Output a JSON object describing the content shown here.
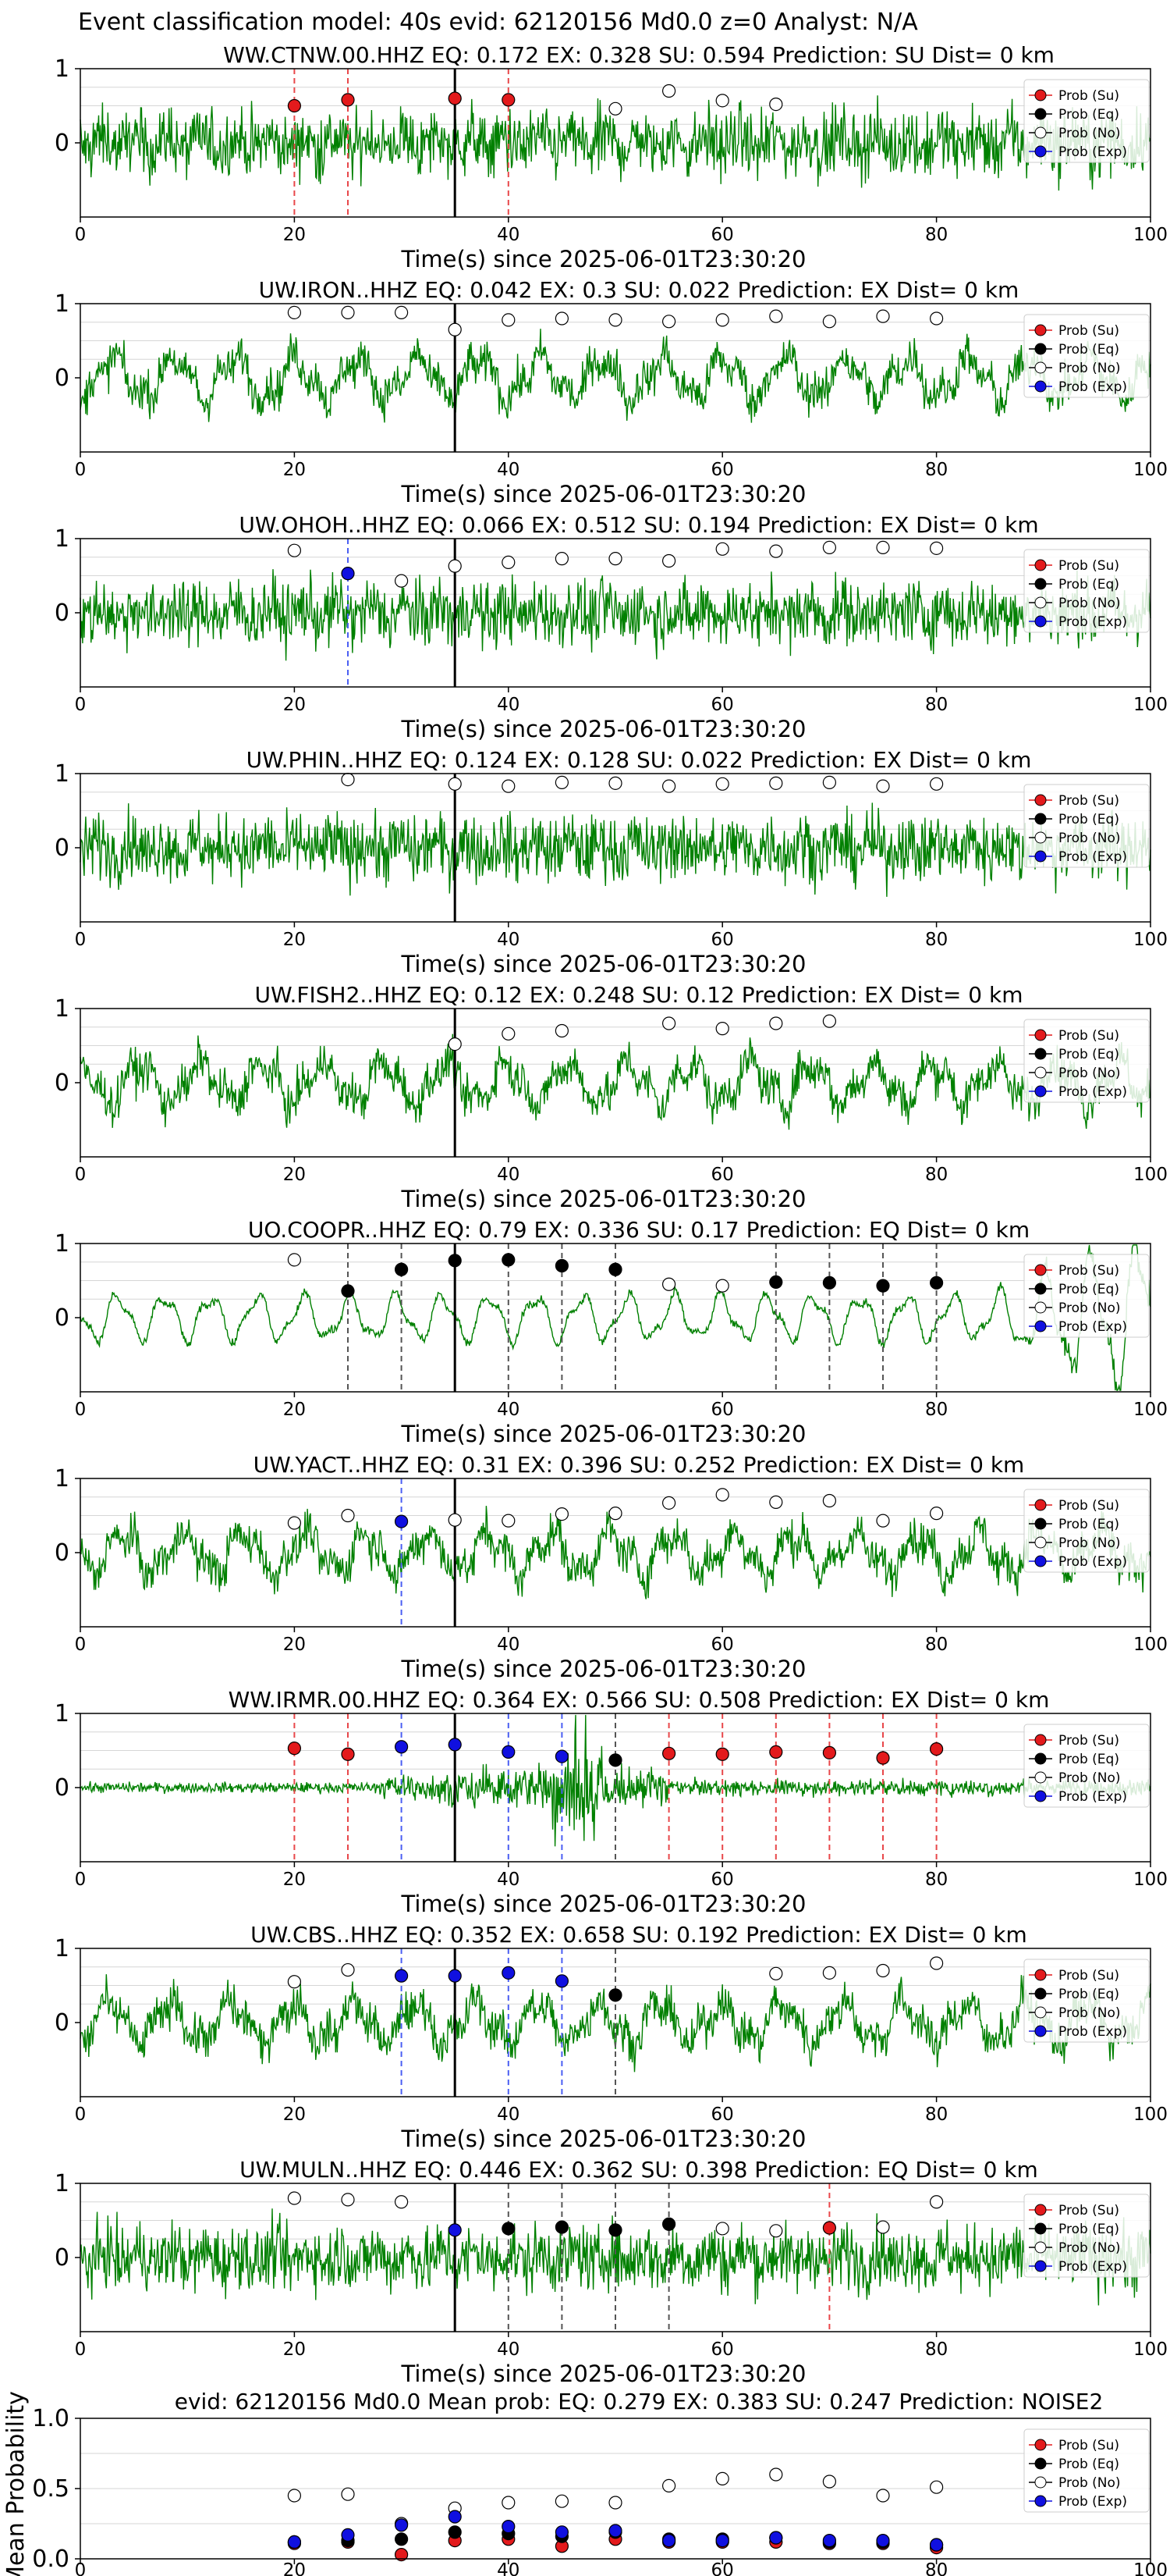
{
  "suptitle": "Event classification model: 40s evid: 62120156 Md0.0 z=0 Analyst: N/A",
  "colors": {
    "waveform": "#008000",
    "su": "#e31a1c",
    "eq": "#000000",
    "no": "#ffffff",
    "exp": "#1010e0",
    "su_line": "#e8474a",
    "eq_line": "#555555",
    "exp_line": "#4b5ff2",
    "origin_line": "#000000",
    "grid": "#d6d6d6"
  },
  "legend": [
    "Prob (Su)",
    "Prob (Eq)",
    "Prob (No)",
    "Prob (Exp)"
  ],
  "common": {
    "xlabel": "Time(s) since 2025-06-01T23:30:20",
    "xlim": [
      0,
      100
    ],
    "xticks": [
      0,
      20,
      40,
      60,
      80,
      100
    ],
    "ylim": [
      -1,
      1
    ],
    "yticks": [
      0,
      1
    ],
    "origin_time": 35
  },
  "chart_data": [
    {
      "type": "line+scatter",
      "station": "WW.CTNW.00.HHZ",
      "title": "WW.CTNW.00.HHZ   EQ: 0.172  EX: 0.328  SU: 0.594   Prediction: SU    Dist= 0 km",
      "waveform_style": "broadband",
      "points": [
        {
          "x": 20,
          "y": 0.5,
          "c": "su"
        },
        {
          "x": 25,
          "y": 0.58,
          "c": "su"
        },
        {
          "x": 35,
          "y": 0.6,
          "c": "su"
        },
        {
          "x": 40,
          "y": 0.58,
          "c": "su"
        },
        {
          "x": 50,
          "y": 0.46,
          "c": "no"
        },
        {
          "x": 55,
          "y": 0.7,
          "c": "no"
        },
        {
          "x": 60,
          "y": 0.57,
          "c": "no"
        },
        {
          "x": 65,
          "y": 0.52,
          "c": "no"
        }
      ]
    },
    {
      "type": "line+scatter",
      "station": "UW.IRON..HHZ",
      "title": "UW.IRON..HHZ   EQ: 0.042  EX: 0.3  SU: 0.022   Prediction: EX    Dist= 0 km",
      "waveform_style": "mixed",
      "points": [
        {
          "x": 20,
          "y": 0.88,
          "c": "no"
        },
        {
          "x": 25,
          "y": 0.88,
          "c": "no"
        },
        {
          "x": 30,
          "y": 0.88,
          "c": "no"
        },
        {
          "x": 35,
          "y": 0.65,
          "c": "no"
        },
        {
          "x": 40,
          "y": 0.78,
          "c": "no"
        },
        {
          "x": 45,
          "y": 0.8,
          "c": "no"
        },
        {
          "x": 50,
          "y": 0.78,
          "c": "no"
        },
        {
          "x": 55,
          "y": 0.76,
          "c": "no"
        },
        {
          "x": 60,
          "y": 0.78,
          "c": "no"
        },
        {
          "x": 65,
          "y": 0.83,
          "c": "no"
        },
        {
          "x": 70,
          "y": 0.76,
          "c": "no"
        },
        {
          "x": 75,
          "y": 0.83,
          "c": "no"
        },
        {
          "x": 80,
          "y": 0.8,
          "c": "no"
        }
      ]
    },
    {
      "type": "line+scatter",
      "station": "UW.OHOH..HHZ",
      "title": "UW.OHOH..HHZ   EQ: 0.066  EX: 0.512  SU: 0.194   Prediction: EX    Dist= 0 km",
      "waveform_style": "broadband",
      "points": [
        {
          "x": 20,
          "y": 0.84,
          "c": "no"
        },
        {
          "x": 25,
          "y": 0.53,
          "c": "exp"
        },
        {
          "x": 30,
          "y": 0.43,
          "c": "no"
        },
        {
          "x": 35,
          "y": 0.63,
          "c": "no"
        },
        {
          "x": 40,
          "y": 0.68,
          "c": "no"
        },
        {
          "x": 45,
          "y": 0.73,
          "c": "no"
        },
        {
          "x": 50,
          "y": 0.73,
          "c": "no"
        },
        {
          "x": 55,
          "y": 0.7,
          "c": "no"
        },
        {
          "x": 60,
          "y": 0.86,
          "c": "no"
        },
        {
          "x": 65,
          "y": 0.83,
          "c": "no"
        },
        {
          "x": 70,
          "y": 0.88,
          "c": "no"
        },
        {
          "x": 75,
          "y": 0.88,
          "c": "no"
        },
        {
          "x": 80,
          "y": 0.87,
          "c": "no"
        }
      ]
    },
    {
      "type": "line+scatter",
      "station": "UW.PHIN..HHZ",
      "title": "UW.PHIN..HHZ   EQ: 0.124  EX: 0.128  SU: 0.022   Prediction: EX    Dist= 0 km",
      "waveform_style": "broadband",
      "points": [
        {
          "x": 25,
          "y": 0.92,
          "c": "no"
        },
        {
          "x": 35,
          "y": 0.86,
          "c": "no"
        },
        {
          "x": 40,
          "y": 0.83,
          "c": "no"
        },
        {
          "x": 45,
          "y": 0.88,
          "c": "no"
        },
        {
          "x": 50,
          "y": 0.87,
          "c": "no"
        },
        {
          "x": 55,
          "y": 0.83,
          "c": "no"
        },
        {
          "x": 60,
          "y": 0.86,
          "c": "no"
        },
        {
          "x": 65,
          "y": 0.87,
          "c": "no"
        },
        {
          "x": 70,
          "y": 0.88,
          "c": "no"
        },
        {
          "x": 75,
          "y": 0.83,
          "c": "no"
        },
        {
          "x": 80,
          "y": 0.86,
          "c": "no"
        }
      ]
    },
    {
      "type": "line+scatter",
      "station": "UW.FISH2..HHZ",
      "title": "UW.FISH2..HHZ   EQ: 0.12  EX: 0.248  SU: 0.12   Prediction: EX    Dist= 0 km",
      "waveform_style": "mixed",
      "points": [
        {
          "x": 35,
          "y": 0.52,
          "c": "no"
        },
        {
          "x": 40,
          "y": 0.66,
          "c": "no"
        },
        {
          "x": 45,
          "y": 0.7,
          "c": "no"
        },
        {
          "x": 55,
          "y": 0.8,
          "c": "no"
        },
        {
          "x": 60,
          "y": 0.73,
          "c": "no"
        },
        {
          "x": 65,
          "y": 0.8,
          "c": "no"
        },
        {
          "x": 70,
          "y": 0.83,
          "c": "no"
        }
      ]
    },
    {
      "type": "line+scatter",
      "station": "UO.COOPR..HHZ",
      "title": "UO.COOPR..HHZ   EQ: 0.79  EX: 0.336  SU: 0.17   Prediction: EQ    Dist= 0 km",
      "waveform_style": "smooth",
      "points": [
        {
          "x": 20,
          "y": 0.78,
          "c": "no"
        },
        {
          "x": 25,
          "y": 0.36,
          "c": "eq"
        },
        {
          "x": 30,
          "y": 0.65,
          "c": "eq"
        },
        {
          "x": 35,
          "y": 0.77,
          "c": "eq"
        },
        {
          "x": 40,
          "y": 0.78,
          "c": "eq"
        },
        {
          "x": 45,
          "y": 0.7,
          "c": "eq"
        },
        {
          "x": 50,
          "y": 0.65,
          "c": "eq"
        },
        {
          "x": 55,
          "y": 0.45,
          "c": "no"
        },
        {
          "x": 60,
          "y": 0.43,
          "c": "no"
        },
        {
          "x": 65,
          "y": 0.48,
          "c": "eq"
        },
        {
          "x": 70,
          "y": 0.47,
          "c": "eq"
        },
        {
          "x": 75,
          "y": 0.43,
          "c": "eq"
        },
        {
          "x": 80,
          "y": 0.47,
          "c": "eq"
        }
      ]
    },
    {
      "type": "line+scatter",
      "station": "UW.YACT..HHZ",
      "title": "UW.YACT..HHZ   EQ: 0.31  EX: 0.396  SU: 0.252   Prediction: EX    Dist= 0 km",
      "waveform_style": "mixed",
      "points": [
        {
          "x": 20,
          "y": 0.4,
          "c": "no"
        },
        {
          "x": 25,
          "y": 0.5,
          "c": "no"
        },
        {
          "x": 30,
          "y": 0.42,
          "c": "exp"
        },
        {
          "x": 35,
          "y": 0.44,
          "c": "no"
        },
        {
          "x": 40,
          "y": 0.43,
          "c": "no"
        },
        {
          "x": 45,
          "y": 0.52,
          "c": "no"
        },
        {
          "x": 50,
          "y": 0.53,
          "c": "no"
        },
        {
          "x": 55,
          "y": 0.67,
          "c": "no"
        },
        {
          "x": 60,
          "y": 0.78,
          "c": "no"
        },
        {
          "x": 65,
          "y": 0.68,
          "c": "no"
        },
        {
          "x": 70,
          "y": 0.7,
          "c": "no"
        },
        {
          "x": 75,
          "y": 0.43,
          "c": "no"
        },
        {
          "x": 80,
          "y": 0.53,
          "c": "no"
        }
      ]
    },
    {
      "type": "line+scatter",
      "station": "WW.IRMR.00.HHZ",
      "title": "WW.IRMR.00.HHZ   EQ: 0.364  EX: 0.566  SU: 0.508   Prediction: EX    Dist= 0 km",
      "waveform_style": "quiet",
      "points": [
        {
          "x": 20,
          "y": 0.53,
          "c": "su"
        },
        {
          "x": 25,
          "y": 0.45,
          "c": "su"
        },
        {
          "x": 30,
          "y": 0.55,
          "c": "exp"
        },
        {
          "x": 35,
          "y": 0.58,
          "c": "exp"
        },
        {
          "x": 40,
          "y": 0.48,
          "c": "exp"
        },
        {
          "x": 45,
          "y": 0.42,
          "c": "exp"
        },
        {
          "x": 50,
          "y": 0.37,
          "c": "eq"
        },
        {
          "x": 55,
          "y": 0.46,
          "c": "su"
        },
        {
          "x": 60,
          "y": 0.45,
          "c": "su"
        },
        {
          "x": 65,
          "y": 0.48,
          "c": "su"
        },
        {
          "x": 70,
          "y": 0.47,
          "c": "su"
        },
        {
          "x": 75,
          "y": 0.4,
          "c": "su"
        },
        {
          "x": 80,
          "y": 0.52,
          "c": "su"
        }
      ]
    },
    {
      "type": "line+scatter",
      "station": "UW.CBS..HHZ",
      "title": "UW.CBS..HHZ   EQ: 0.352  EX: 0.658  SU: 0.192   Prediction: EX    Dist= 0 km",
      "waveform_style": "mixed",
      "points": [
        {
          "x": 20,
          "y": 0.55,
          "c": "no"
        },
        {
          "x": 25,
          "y": 0.71,
          "c": "no"
        },
        {
          "x": 30,
          "y": 0.63,
          "c": "exp"
        },
        {
          "x": 35,
          "y": 0.63,
          "c": "exp"
        },
        {
          "x": 40,
          "y": 0.67,
          "c": "exp"
        },
        {
          "x": 45,
          "y": 0.56,
          "c": "exp"
        },
        {
          "x": 50,
          "y": 0.37,
          "c": "eq"
        },
        {
          "x": 65,
          "y": 0.66,
          "c": "no"
        },
        {
          "x": 70,
          "y": 0.67,
          "c": "no"
        },
        {
          "x": 75,
          "y": 0.7,
          "c": "no"
        },
        {
          "x": 80,
          "y": 0.8,
          "c": "no"
        }
      ]
    },
    {
      "type": "line+scatter",
      "station": "UW.MULN..HHZ",
      "title": "UW.MULN..HHZ   EQ: 0.446  EX: 0.362  SU: 0.398   Prediction: EQ    Dist= 0 km",
      "waveform_style": "broadband",
      "points": [
        {
          "x": 20,
          "y": 0.8,
          "c": "no"
        },
        {
          "x": 25,
          "y": 0.78,
          "c": "no"
        },
        {
          "x": 30,
          "y": 0.75,
          "c": "no"
        },
        {
          "x": 35,
          "y": 0.37,
          "c": "exp"
        },
        {
          "x": 40,
          "y": 0.39,
          "c": "eq"
        },
        {
          "x": 45,
          "y": 0.41,
          "c": "eq"
        },
        {
          "x": 50,
          "y": 0.37,
          "c": "eq"
        },
        {
          "x": 55,
          "y": 0.45,
          "c": "eq"
        },
        {
          "x": 60,
          "y": 0.39,
          "c": "no"
        },
        {
          "x": 65,
          "y": 0.36,
          "c": "no"
        },
        {
          "x": 70,
          "y": 0.4,
          "c": "su"
        },
        {
          "x": 75,
          "y": 0.41,
          "c": "no"
        },
        {
          "x": 80,
          "y": 0.75,
          "c": "no"
        }
      ]
    },
    {
      "type": "scatter",
      "title": "evid: 62120156   Md0.0    Mean prob:    EQ: 0.279   EX: 0.383   SU: 0.247    Prediction: NOISE2",
      "ylabel": "Mean Probability",
      "ylim": [
        0,
        1
      ],
      "yticks": [
        "0.0",
        "0.5",
        "1.0"
      ],
      "series": [
        {
          "name": "Prob (Su)",
          "key": "su",
          "x": [
            20,
            25,
            30,
            35,
            40,
            45,
            50,
            55,
            60,
            65,
            70,
            75,
            80
          ],
          "y": [
            0.11,
            0.12,
            0.03,
            0.13,
            0.14,
            0.09,
            0.14,
            0.12,
            0.12,
            0.12,
            0.11,
            0.11,
            0.08
          ]
        },
        {
          "name": "Prob (Eq)",
          "key": "eq",
          "x": [
            20,
            25,
            30,
            35,
            40,
            45,
            50,
            55,
            60,
            65,
            70,
            75,
            80
          ],
          "y": [
            0.12,
            0.13,
            0.14,
            0.19,
            0.18,
            0.16,
            0.19,
            0.14,
            0.14,
            0.15,
            0.12,
            0.12,
            0.1
          ]
        },
        {
          "name": "Prob (No)",
          "key": "no",
          "x": [
            20,
            25,
            30,
            35,
            40,
            45,
            50,
            55,
            60,
            65,
            70,
            75,
            80
          ],
          "y": [
            0.45,
            0.46,
            0.25,
            0.36,
            0.4,
            0.41,
            0.4,
            0.52,
            0.57,
            0.6,
            0.55,
            0.45,
            0.51
          ]
        },
        {
          "name": "Prob (Exp)",
          "key": "exp",
          "x": [
            20,
            25,
            30,
            35,
            40,
            45,
            50,
            55,
            60,
            65,
            70,
            75,
            80
          ],
          "y": [
            0.12,
            0.17,
            0.24,
            0.3,
            0.23,
            0.19,
            0.2,
            0.13,
            0.13,
            0.15,
            0.13,
            0.13,
            0.1
          ]
        }
      ]
    }
  ]
}
